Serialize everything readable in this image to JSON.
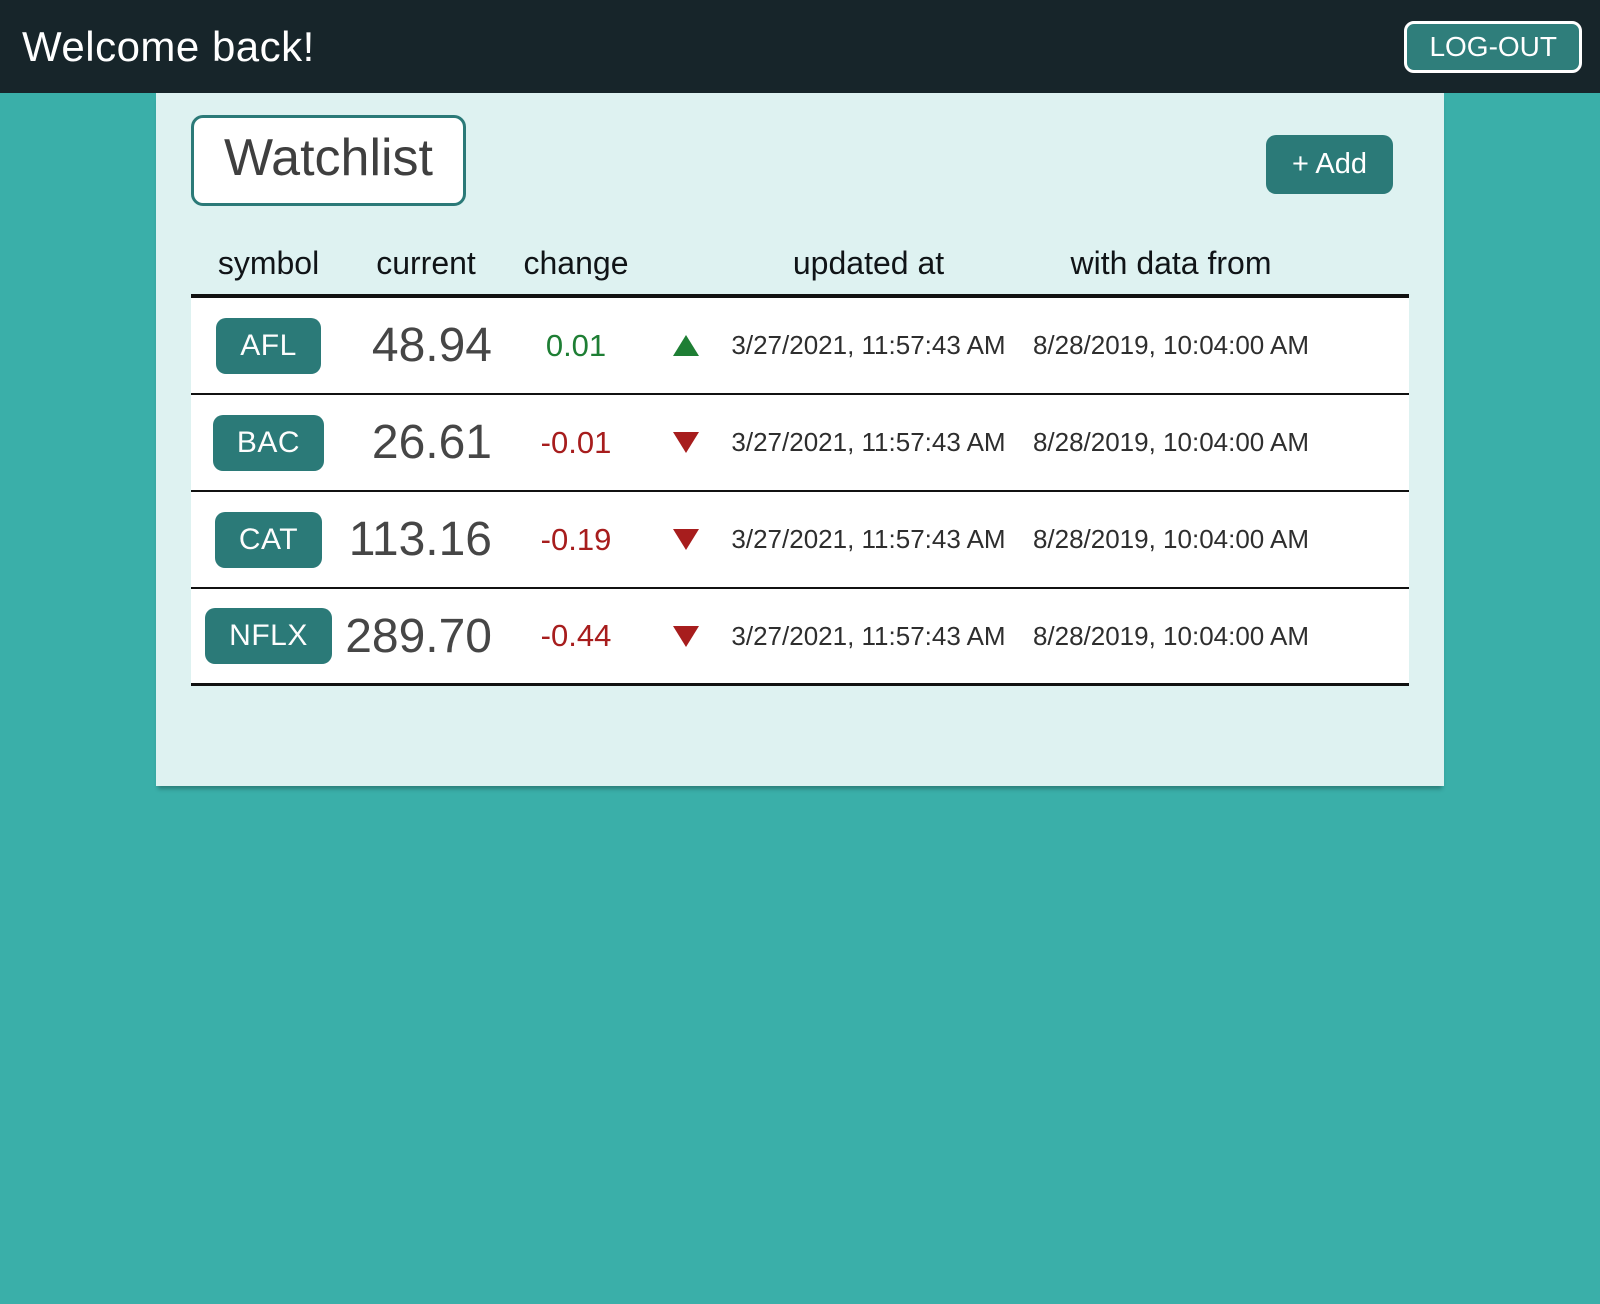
{
  "header": {
    "title": "Welcome back!",
    "logout_label": "LOG-OUT"
  },
  "watchlist": {
    "title": "Watchlist",
    "add_label": "+ Add",
    "columns": [
      "symbol",
      "current",
      "change",
      "updated at",
      "with data from"
    ],
    "rows": [
      {
        "symbol": "AFL",
        "current": "48.94",
        "change": "0.01",
        "direction": "up",
        "updated_at": "3/27/2021, 11:57:43 AM",
        "data_from": "8/28/2019, 10:04:00 AM"
      },
      {
        "symbol": "BAC",
        "current": "26.61",
        "change": "-0.01",
        "direction": "down",
        "updated_at": "3/27/2021, 11:57:43 AM",
        "data_from": "8/28/2019, 10:04:00 AM"
      },
      {
        "symbol": "CAT",
        "current": "113.16",
        "change": "-0.19",
        "direction": "down",
        "updated_at": "3/27/2021, 11:57:43 AM",
        "data_from": "8/28/2019, 10:04:00 AM"
      },
      {
        "symbol": "NFLX",
        "current": "289.70",
        "change": "-0.44",
        "direction": "down",
        "updated_at": "3/27/2021, 11:57:43 AM",
        "data_from": "8/28/2019, 10:04:00 AM"
      }
    ]
  },
  "colors": {
    "dark": "#17252a",
    "teal": "#3aafa9",
    "mint": "#def2f1",
    "btn-teal": "#2b7a78",
    "green": "#1e7e34",
    "red": "#a71d1d"
  }
}
